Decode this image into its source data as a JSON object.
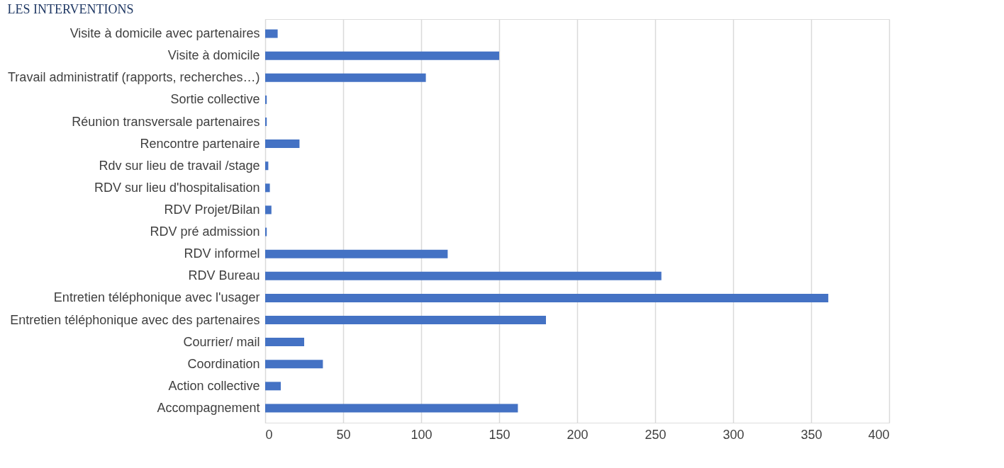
{
  "chart_data": {
    "type": "bar",
    "orientation": "horizontal",
    "title": "LES INTERVENTIONS",
    "categories": [
      "Visite à domicile avec partenaires",
      "Visite à domicile",
      "Travail administratif (rapports, recherches…)",
      "Sortie collective",
      "Réunion transversale partenaires",
      "Rencontre partenaire",
      "Rdv sur lieu de travail /stage",
      "RDV sur lieu d'hospitalisation",
      "RDV Projet/Bilan",
      "RDV pré admission",
      "RDV informel",
      "RDV Bureau",
      "Entretien téléphonique avec l'usager",
      "Entretien téléphonique avec des partenaires",
      "Courrier/ mail",
      "Coordination",
      "Action collective",
      "Accompagnement"
    ],
    "values": [
      8,
      150,
      103,
      1,
      1,
      22,
      2,
      3,
      4,
      1,
      117,
      254,
      361,
      180,
      25,
      37,
      10,
      162
    ],
    "color": "#4472c4",
    "xlim": [
      0,
      400
    ],
    "xticks": [
      0,
      50,
      100,
      150,
      200,
      250,
      300,
      350,
      400
    ],
    "grid": "x",
    "legend": false
  }
}
